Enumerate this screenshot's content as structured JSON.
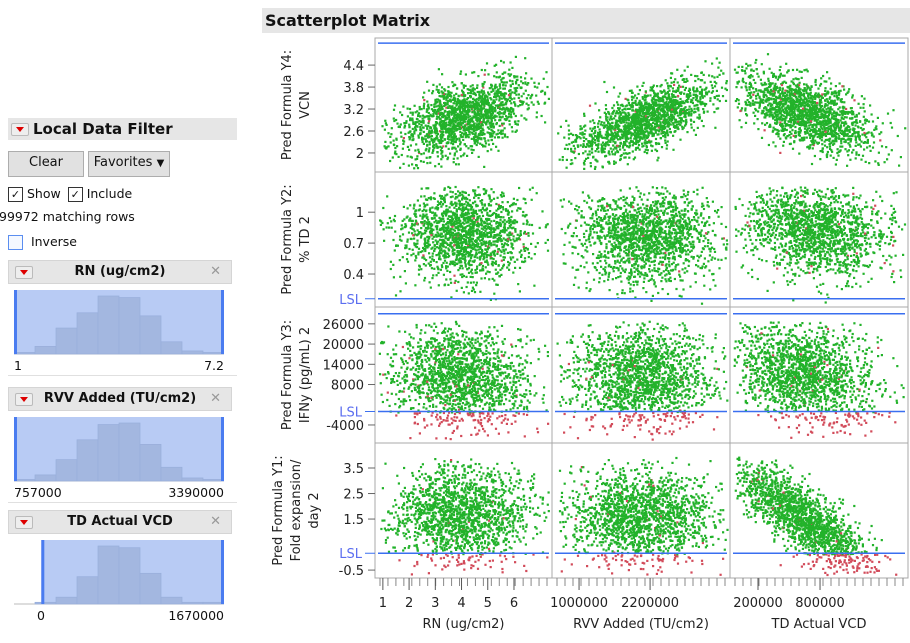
{
  "filter": {
    "title": "Local Data Filter",
    "clear_label": "Clear",
    "favorites_label": "Favorites",
    "show_label": "Show",
    "show_checked": true,
    "include_label": "Include",
    "include_checked": true,
    "matching_rows": "99972 matching rows",
    "inverse_label": "Inverse",
    "inverse_checked": false,
    "columns": [
      {
        "name": "RN (ug/cm2)",
        "min_label": "1",
        "max_label": "7.2",
        "selection_fraction": [
          0,
          1
        ],
        "histogram": [
          1,
          5,
          17,
          27,
          38,
          37,
          25,
          8,
          2,
          1
        ]
      },
      {
        "name": "RVV Added (TU/cm2)",
        "min_label": "757000",
        "max_label": "3390000",
        "selection_fraction": [
          0,
          1
        ],
        "histogram": [
          1,
          4,
          14,
          27,
          37,
          38,
          24,
          9,
          2,
          1
        ]
      },
      {
        "name": "TD Actual VCD",
        "min_label": "0",
        "max_label": "1670000",
        "selection_fraction": [
          0.13,
          1
        ],
        "histogram": [
          0,
          1,
          4,
          16,
          34,
          33,
          18,
          4,
          1,
          1
        ]
      }
    ]
  },
  "chart_data": {
    "type": "scatter",
    "title": "Scatterplot Matrix",
    "colors": {
      "pass": "#22b22a",
      "fail": "#d24b5a",
      "limit_line": "#3a6ff0",
      "lsl_label": "#5b6ef0"
    },
    "x_axes": [
      {
        "label": "RN (ug/cm2)",
        "ticks": [
          "1",
          "2",
          "3",
          "4",
          "5",
          "6"
        ],
        "tick_values": [
          1,
          2,
          3,
          4,
          5,
          6
        ],
        "range": [
          0.7,
          7.45
        ]
      },
      {
        "label": "RVV Added (TU/cm2)",
        "ticks": [
          "1000000",
          "2200000"
        ],
        "tick_values": [
          1000000,
          2200000
        ],
        "range": [
          543000,
          3550000
        ]
      },
      {
        "label": "TD Actual VCD",
        "ticks": [
          "200000",
          "800000"
        ],
        "tick_values": [
          200000,
          800000
        ],
        "range": [
          -71000,
          1651000
        ]
      }
    ],
    "y_axes": [
      {
        "label": "Pred Formula Y4: VCN",
        "label_lines": [
          "Pred Formula Y4:",
          "VCN"
        ],
        "ticks": [
          "4.4",
          "3.8",
          "3.2",
          "2.6",
          "2"
        ],
        "tick_values": [
          4.4,
          3.8,
          3.2,
          2.6,
          2
        ],
        "range": [
          1.48,
          5.14
        ],
        "upper_line": 5.0
      },
      {
        "label": "Pred Formula Y2: % TD 2",
        "label_lines": [
          "Pred Formula Y2:",
          "% TD 2"
        ],
        "ticks": [
          "1",
          "0.7",
          "0.4"
        ],
        "tick_values": [
          1,
          0.7,
          0.4
        ],
        "range": [
          0.08,
          1.39
        ],
        "lsl": 0.16,
        "lsl_label": "LSL"
      },
      {
        "label": "Pred Formula Y3: IFNy (pg/mL) 2",
        "label_lines": [
          "Pred Formula Y3:",
          "IFNy (pg/mL) 2"
        ],
        "ticks": [
          "26000",
          "20000",
          "14000",
          "8000",
          "-4000"
        ],
        "tick_values": [
          26000,
          20000,
          14000,
          8000,
          -4000
        ],
        "range": [
          -9350,
          31000
        ],
        "lsl": 0,
        "upper_line": 29000,
        "lsl_label": "LSL"
      },
      {
        "label": "Pred Formula Y1: Fold expansion/ day 2",
        "label_lines": [
          "Pred Formula Y1:",
          "Fold expansion/",
          "day 2"
        ],
        "ticks": [
          "3.5",
          "2.5",
          "1.5",
          "-0.5"
        ],
        "tick_values": [
          3.5,
          2.5,
          1.5,
          -0.5
        ],
        "range": [
          -0.81,
          4.48
        ],
        "lsl": 0.16,
        "lsl_label": "LSL"
      }
    ]
  }
}
